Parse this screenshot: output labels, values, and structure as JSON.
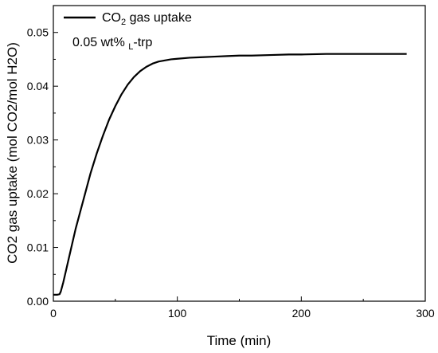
{
  "chart_data": {
    "type": "line",
    "xlabel": "Time (min)",
    "ylabel": "CO2 gas uptake (mol CO2/mol H2O)",
    "xlim": [
      0,
      300
    ],
    "ylim": [
      0,
      0.055
    ],
    "xticks": [
      "0",
      "100",
      "200",
      "300"
    ],
    "yticks": [
      "0.00",
      "0.01",
      "0.02",
      "0.03",
      "0.04",
      "0.05"
    ],
    "grid": false,
    "legend_position": "top-left",
    "annotation": {
      "main": "0.05 wt% ",
      "sub": "L",
      "tail": "-trp"
    },
    "series": [
      {
        "name": "CO2 gas uptake",
        "legend_main": "CO",
        "legend_sub": "2",
        "legend_tail": " gas uptake",
        "color": "#000000",
        "x": [
          0,
          3,
          5,
          6,
          8,
          10,
          12,
          15,
          18,
          20,
          25,
          30,
          35,
          40,
          45,
          50,
          55,
          60,
          65,
          70,
          75,
          80,
          85,
          90,
          95,
          100,
          110,
          120,
          130,
          140,
          150,
          160,
          175,
          190,
          200,
          220,
          240,
          260,
          280,
          285
        ],
        "y": [
          0.0012,
          0.0012,
          0.0013,
          0.0018,
          0.0035,
          0.0055,
          0.0075,
          0.0105,
          0.0135,
          0.0152,
          0.0195,
          0.0238,
          0.0275,
          0.0308,
          0.0338,
          0.0363,
          0.0385,
          0.0403,
          0.0417,
          0.0428,
          0.0436,
          0.0442,
          0.0446,
          0.0448,
          0.045,
          0.0451,
          0.0453,
          0.0454,
          0.0455,
          0.0456,
          0.0457,
          0.0457,
          0.0458,
          0.0459,
          0.0459,
          0.046,
          0.046,
          0.046,
          0.046,
          0.046
        ]
      }
    ]
  }
}
